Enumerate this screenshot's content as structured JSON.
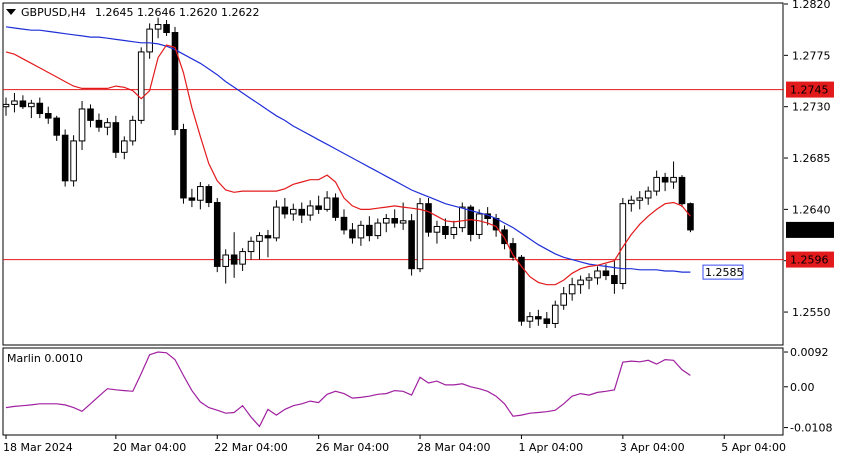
{
  "header": {
    "symbol": "GBPUSD,H4",
    "ohlc": "1.2645 1.2646 1.2620 1.2622"
  },
  "colors": {
    "background": "#ffffff",
    "frame": "#000000",
    "candle_bull_body": "#ffffff",
    "candle_bear_body": "#000000",
    "ma_fast": "#e31a1c",
    "ma_slow": "#1f2fd8",
    "level_line": "#e31a1c",
    "level_tag_bg": "#e31a1c",
    "current_price_tag_bg": "#000000",
    "ma_slow_tag": "#3a4cf0",
    "oscillator": "#a020a0"
  },
  "chart_data": [
    {
      "type": "candlestick",
      "symbol": "GBPUSD",
      "timeframe": "H4",
      "ylim": [
        1.2522,
        1.282
      ],
      "y_ticks": [
        "1.2820",
        "1.2775",
        "1.2730",
        "1.2685",
        "1.2640",
        "1.2595",
        "1.2550"
      ],
      "x_ticks": [
        {
          "label": "18 Mar 2024",
          "index": 0
        },
        {
          "label": "20 Mar 04:00",
          "index": 13
        },
        {
          "label": "22 Mar 04:00",
          "index": 25
        },
        {
          "label": "26 Mar 04:00",
          "index": 37
        },
        {
          "label": "28 Mar 04:00",
          "index": 49
        },
        {
          "label": "1 Apr 04:00",
          "index": 61
        },
        {
          "label": "3 Apr 04:00",
          "index": 73
        },
        {
          "label": "5 Apr 04:00",
          "index": 85
        }
      ],
      "ohlc": [
        [
          1.273,
          1.2738,
          1.2722,
          1.2732
        ],
        [
          1.2732,
          1.2742,
          1.2725,
          1.2735
        ],
        [
          1.2735,
          1.274,
          1.2728,
          1.273
        ],
        [
          1.273,
          1.2736,
          1.272,
          1.2733
        ],
        [
          1.2733,
          1.2738,
          1.272,
          1.2724
        ],
        [
          1.2724,
          1.273,
          1.2715,
          1.272
        ],
        [
          1.272,
          1.2722,
          1.27,
          1.2705
        ],
        [
          1.2705,
          1.271,
          1.266,
          1.2665
        ],
        [
          1.2665,
          1.2705,
          1.266,
          1.27
        ],
        [
          1.27,
          1.2735,
          1.2692,
          1.2728
        ],
        [
          1.2728,
          1.2732,
          1.2712,
          1.2718
        ],
        [
          1.2718,
          1.2724,
          1.2708,
          1.2712
        ],
        [
          1.2712,
          1.272,
          1.2705,
          1.2716
        ],
        [
          1.2716,
          1.2722,
          1.2685,
          1.269
        ],
        [
          1.269,
          1.2704,
          1.2684,
          1.27
        ],
        [
          1.27,
          1.2722,
          1.2696,
          1.2718
        ],
        [
          1.2718,
          1.2782,
          1.2715,
          1.2778
        ],
        [
          1.2778,
          1.2803,
          1.2772,
          1.2798
        ],
        [
          1.2798,
          1.2808,
          1.279,
          1.2802
        ],
        [
          1.2802,
          1.2806,
          1.2792,
          1.2795
        ],
        [
          1.2795,
          1.28,
          1.2705,
          1.271
        ],
        [
          1.271,
          1.2715,
          1.2645,
          1.265
        ],
        [
          1.265,
          1.2658,
          1.2642,
          1.2648
        ],
        [
          1.2648,
          1.2664,
          1.264,
          1.266
        ],
        [
          1.266,
          1.2662,
          1.2642,
          1.2646
        ],
        [
          1.2646,
          1.265,
          1.2585,
          1.259
        ],
        [
          1.259,
          1.2605,
          1.2575,
          1.26
        ],
        [
          1.26,
          1.262,
          1.258,
          1.2592
        ],
        [
          1.2592,
          1.2606,
          1.2586,
          1.2603
        ],
        [
          1.2603,
          1.2616,
          1.2596,
          1.2612
        ],
        [
          1.2612,
          1.262,
          1.2596,
          1.2617
        ],
        [
          1.2617,
          1.2622,
          1.2598,
          1.2615
        ],
        [
          1.2615,
          1.2648,
          1.2612,
          1.2642
        ],
        [
          1.2642,
          1.265,
          1.2632,
          1.2636
        ],
        [
          1.2636,
          1.2645,
          1.263,
          1.264
        ],
        [
          1.264,
          1.2646,
          1.2628,
          1.2635
        ],
        [
          1.2635,
          1.2648,
          1.263,
          1.2643
        ],
        [
          1.2643,
          1.2652,
          1.2636,
          1.264
        ],
        [
          1.264,
          1.2656,
          1.2638,
          1.265
        ],
        [
          1.265,
          1.2654,
          1.263,
          1.2633
        ],
        [
          1.2633,
          1.264,
          1.2618,
          1.2622
        ],
        [
          1.2622,
          1.2628,
          1.261,
          1.2615
        ],
        [
          1.2615,
          1.263,
          1.2608,
          1.2626
        ],
        [
          1.2626,
          1.2634,
          1.2612,
          1.2617
        ],
        [
          1.2617,
          1.2632,
          1.2614,
          1.2628
        ],
        [
          1.2628,
          1.2636,
          1.262,
          1.2632
        ],
        [
          1.2632,
          1.264,
          1.2624,
          1.2628
        ],
        [
          1.2628,
          1.2646,
          1.2622,
          1.263
        ],
        [
          1.263,
          1.2636,
          1.2582,
          1.2588
        ],
        [
          1.2588,
          1.265,
          1.2585,
          1.2645
        ],
        [
          1.2645,
          1.265,
          1.2616,
          1.262
        ],
        [
          1.262,
          1.263,
          1.261,
          1.2625
        ],
        [
          1.2625,
          1.2632,
          1.2614,
          1.2618
        ],
        [
          1.2618,
          1.263,
          1.2614,
          1.2624
        ],
        [
          1.2624,
          1.2646,
          1.262,
          1.2642
        ],
        [
          1.2642,
          1.2644,
          1.2612,
          1.2618
        ],
        [
          1.2618,
          1.264,
          1.2614,
          1.2636
        ],
        [
          1.2636,
          1.2642,
          1.2626,
          1.2632
        ],
        [
          1.2632,
          1.2636,
          1.2616,
          1.2622
        ],
        [
          1.2622,
          1.2626,
          1.2605,
          1.261
        ],
        [
          1.261,
          1.2615,
          1.2595,
          1.2598
        ],
        [
          1.2598,
          1.26,
          1.2538,
          1.2542
        ],
        [
          1.2542,
          1.255,
          1.2536,
          1.2546
        ],
        [
          1.2546,
          1.2552,
          1.2538,
          1.2544
        ],
        [
          1.2544,
          1.255,
          1.2536,
          1.254
        ],
        [
          1.254,
          1.256,
          1.2536,
          1.2556
        ],
        [
          1.2556,
          1.2572,
          1.2552,
          1.2566
        ],
        [
          1.2566,
          1.258,
          1.256,
          1.2574
        ],
        [
          1.2574,
          1.2582,
          1.2566,
          1.2578
        ],
        [
          1.2578,
          1.2584,
          1.257,
          1.258
        ],
        [
          1.258,
          1.259,
          1.2574,
          1.2586
        ],
        [
          1.2586,
          1.2592,
          1.2578,
          1.2582
        ],
        [
          1.2582,
          1.2596,
          1.2566,
          1.2575
        ],
        [
          1.2575,
          1.265,
          1.257,
          1.2645
        ],
        [
          1.2645,
          1.2652,
          1.2638,
          1.2648
        ],
        [
          1.2648,
          1.2656,
          1.264,
          1.265
        ],
        [
          1.265,
          1.266,
          1.2644,
          1.2656
        ],
        [
          1.2656,
          1.2674,
          1.2652,
          1.2668
        ],
        [
          1.2668,
          1.2672,
          1.2656,
          1.2664
        ],
        [
          1.2664,
          1.2682,
          1.2658,
          1.2668
        ],
        [
          1.2668,
          1.267,
          1.2642,
          1.2645
        ],
        [
          1.2645,
          1.2646,
          1.262,
          1.2622
        ]
      ],
      "ma_fast": [
        1.2778,
        1.2776,
        1.2772,
        1.2768,
        1.2764,
        1.276,
        1.2756,
        1.2752,
        1.2748,
        1.2746,
        1.2746,
        1.2746,
        1.2746,
        1.2748,
        1.2747,
        1.2744,
        1.2737,
        1.2744,
        1.2773,
        1.2784,
        1.2782,
        1.276,
        1.2729,
        1.2704,
        1.268,
        1.2665,
        1.2657,
        1.2655,
        1.2656,
        1.2656,
        1.2656,
        1.2656,
        1.2656,
        1.2658,
        1.2662,
        1.2664,
        1.2666,
        1.2666,
        1.267,
        1.2664,
        1.265,
        1.2643,
        1.264,
        1.264,
        1.2641,
        1.2642,
        1.2643,
        1.2642,
        1.2641,
        1.264,
        1.2638,
        1.2634,
        1.263,
        1.2629,
        1.263,
        1.2631,
        1.263,
        1.2628,
        1.2625,
        1.2615,
        1.26,
        1.259,
        1.2581,
        1.2576,
        1.2574,
        1.2574,
        1.2578,
        1.2584,
        1.2588,
        1.259,
        1.2591,
        1.2593,
        1.2595,
        1.2607,
        1.2618,
        1.2627,
        1.2634,
        1.264,
        1.2645,
        1.2646,
        1.2643,
        1.2634
      ],
      "ma_slow": [
        1.28,
        1.2799,
        1.2798,
        1.2797,
        1.2797,
        1.2796,
        1.2795,
        1.2794,
        1.2793,
        1.2792,
        1.2791,
        1.2791,
        1.279,
        1.2789,
        1.2788,
        1.2787,
        1.2786,
        1.2786,
        1.2785,
        1.2783,
        1.278,
        1.2776,
        1.2772,
        1.2768,
        1.2763,
        1.2758,
        1.2752,
        1.2747,
        1.2742,
        1.2737,
        1.2732,
        1.2727,
        1.2722,
        1.2718,
        1.2713,
        1.2709,
        1.2705,
        1.2701,
        1.2697,
        1.2693,
        1.2689,
        1.2685,
        1.2681,
        1.2677,
        1.2673,
        1.2669,
        1.2665,
        1.2661,
        1.2657,
        1.2654,
        1.2651,
        1.2648,
        1.2645,
        1.2643,
        1.2641,
        1.2639,
        1.2637,
        1.2635,
        1.2632,
        1.2628,
        1.2624,
        1.2619,
        1.2614,
        1.2609,
        1.2605,
        1.2601,
        1.2598,
        1.2596,
        1.2594,
        1.2592,
        1.2591,
        1.259,
        1.2589,
        1.2588,
        1.2588,
        1.2587,
        1.2587,
        1.2587,
        1.2586,
        1.2586,
        1.2585,
        1.2585
      ],
      "horizontal_levels": [
        {
          "value": 1.2745,
          "label": "1.2745"
        },
        {
          "value": 1.2596,
          "label": "1.2596"
        }
      ],
      "current_price": {
        "value": 1.2622,
        "label": "1.2622"
      },
      "ma_slow_last": {
        "value": 1.2585,
        "label": "1.2585"
      }
    },
    {
      "type": "line",
      "indicator": "Marlin",
      "label": "Marlin 0.0010",
      "ylim": [
        -0.0125,
        0.01
      ],
      "y_ticks": [
        "0.0092",
        "0.00",
        "-0.0108"
      ],
      "values": [
        -0.0055,
        -0.0052,
        -0.005,
        -0.0048,
        -0.0045,
        -0.0045,
        -0.0045,
        -0.0048,
        -0.0055,
        -0.0065,
        -0.0045,
        -0.0025,
        -0.0005,
        -0.0008,
        -0.001,
        -0.0012,
        0.0035,
        0.0085,
        0.0092,
        0.009,
        0.0072,
        0.003,
        -0.001,
        -0.004,
        -0.0055,
        -0.0062,
        -0.007,
        -0.0068,
        -0.005,
        -0.008,
        -0.0105,
        -0.006,
        -0.0075,
        -0.006,
        -0.005,
        -0.0045,
        -0.0038,
        -0.0042,
        -0.002,
        -0.0012,
        -0.0018,
        -0.003,
        -0.0028,
        -0.0025,
        -0.002,
        -0.0018,
        -0.001,
        -0.0012,
        -0.0022,
        0.0025,
        0.001,
        0.0015,
        0.0005,
        0.0005,
        0.0008,
        0.0,
        -0.0005,
        -0.0012,
        -0.0025,
        -0.0045,
        -0.0078,
        -0.0075,
        -0.007,
        -0.0068,
        -0.0066,
        -0.0062,
        -0.0045,
        -0.0025,
        -0.0018,
        -0.0022,
        -0.0015,
        -0.0012,
        -0.0008,
        0.0065,
        0.0068,
        0.0066,
        0.007,
        0.006,
        0.0072,
        0.007,
        0.0045,
        0.003
      ]
    }
  ]
}
